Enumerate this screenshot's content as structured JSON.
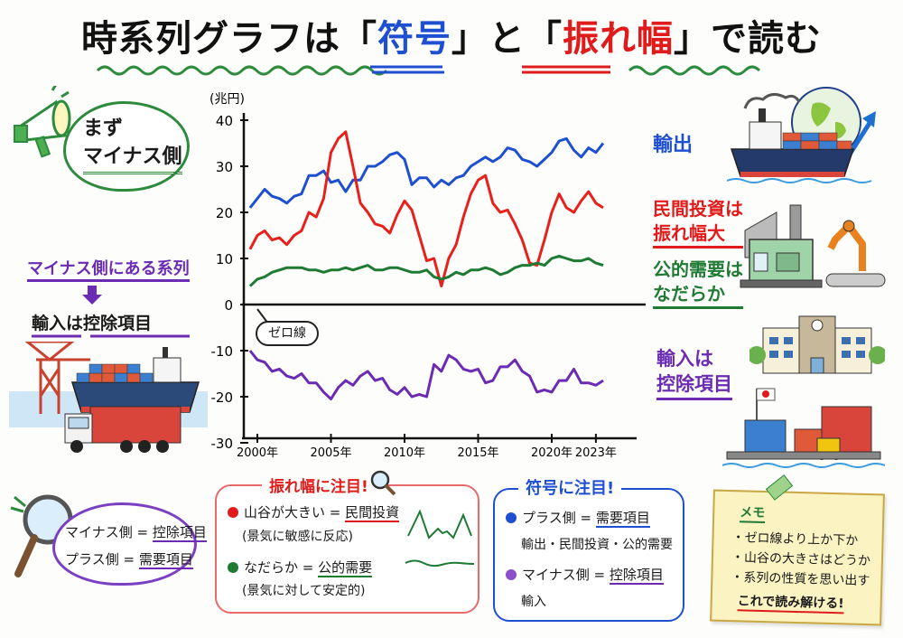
{
  "title": {
    "prefix": "時系列グラフは「",
    "word1": "符号",
    "middle": "」と「",
    "word2": "振れ幅",
    "suffix": "」で読む"
  },
  "callout_top_left": {
    "line1": "まず",
    "line2": "マイナス側",
    "icon": "megaphone-icon"
  },
  "left_note": {
    "heading": "マイナス側にある系列",
    "arrow": "down-arrow-icon",
    "line": "輸入は控除項目"
  },
  "zero_line_bubble": "ゼロ線",
  "series_labels": {
    "exports": "輸出",
    "private_investment_line1": "民間投資は",
    "private_investment_line2": "振れ幅大",
    "public_demand_line1": "公的需要は",
    "public_demand_line2": "なだらか",
    "imports_line1": "輸入は",
    "imports_line2": "控除項目"
  },
  "bottom_left_cloud": {
    "line1_left": "マイナス側 = ",
    "line1_right": "控除項目",
    "line2_left": "プラス側 = ",
    "line2_right": "需要項目"
  },
  "box_amplitude": {
    "title": "振れ幅に注目!",
    "item1_prefix": "山谷が大きい = ",
    "item1_key": "民間投資",
    "item1_note": "(景気に敏感に反応)",
    "item2_prefix": "なだらか = ",
    "item2_key": "公的需要",
    "item2_note": "(景気に対して安定的)"
  },
  "box_sign": {
    "title": "符号に注目!",
    "item1_prefix": "プラス側 = ",
    "item1_key": "需要項目",
    "item1_note": "輸出・民間投資・公的需要",
    "item2_prefix": "マイナス側 = ",
    "item2_key": "控除項目",
    "item2_note": "輸入"
  },
  "memo": {
    "title": "メモ",
    "items": [
      "・ゼロ線より上か下か",
      "・山谷の大きさはどうか",
      "・系列の性質を思い出す"
    ],
    "conclusion": "これで読み解ける!"
  },
  "colors": {
    "exports": "#1f4fd1",
    "private_investment": "#e8201c",
    "public_demand": "#1f7a34",
    "imports": "#6b2bb3"
  },
  "chart_data": {
    "type": "line",
    "title": "",
    "ylabel": "(兆円)",
    "xlabel": "",
    "ylim": [
      -30,
      40
    ],
    "yticks": [
      40,
      30,
      20,
      10,
      0,
      -10,
      -20,
      -30
    ],
    "xtick_labels": [
      "2000年",
      "2005年",
      "2010年",
      "2015年",
      "2020年",
      "2023年"
    ],
    "xticks": [
      2000,
      2005,
      2010,
      2015,
      2020,
      2023
    ],
    "grid": false,
    "zero_line": true,
    "x": [
      1999.5,
      2000,
      2000.5,
      2001,
      2001.5,
      2002,
      2002.5,
      2003,
      2003.5,
      2004,
      2004.5,
      2005,
      2005.5,
      2006,
      2006.5,
      2007,
      2007.5,
      2008,
      2008.5,
      2009,
      2009.5,
      2010,
      2010.5,
      2011,
      2011.5,
      2012,
      2012.5,
      2013,
      2013.5,
      2014,
      2014.5,
      2015,
      2015.5,
      2016,
      2016.5,
      2017,
      2017.5,
      2018,
      2018.5,
      2019,
      2019.5,
      2020,
      2020.5,
      2021,
      2021.5,
      2022,
      2022.5,
      2023,
      2023.5
    ],
    "series": [
      {
        "name": "輸出",
        "values": [
          21,
          23,
          25,
          23.5,
          23,
          22,
          23.5,
          24,
          28,
          28,
          29,
          26.5,
          27,
          24.5,
          27,
          27,
          30,
          30,
          31,
          32.5,
          33,
          31.5,
          26,
          27.5,
          27.5,
          25.5,
          27,
          26,
          27.5,
          28,
          30,
          31,
          32,
          31,
          32,
          34,
          33.5,
          31.5,
          31,
          30,
          31.5,
          33,
          35.5,
          36,
          33.5,
          32,
          34,
          33,
          35
        ]
      },
      {
        "name": "民間投資",
        "values": [
          12,
          15,
          16,
          14,
          14.5,
          13,
          15,
          16,
          20,
          19,
          23,
          33,
          36,
          37.5,
          30,
          22,
          20,
          17.5,
          17,
          15.5,
          19.5,
          22.5,
          20.5,
          15,
          9.5,
          10,
          4,
          10,
          13,
          19,
          24,
          27,
          28,
          22,
          20,
          20.5,
          17.5,
          14,
          9,
          8.5,
          14,
          20,
          24,
          21,
          20,
          22.5,
          24.5,
          22,
          21
        ]
      },
      {
        "name": "公的需要",
        "values": [
          4,
          5.5,
          6,
          7,
          7.5,
          8,
          8,
          8,
          7.5,
          7.5,
          7,
          7.5,
          7.5,
          8,
          7.5,
          8,
          8.5,
          7.5,
          7.5,
          8,
          8,
          7.5,
          7,
          7,
          7.5,
          6,
          5.5,
          6,
          7,
          6.5,
          7.5,
          7.5,
          8,
          7.5,
          6.5,
          7,
          8,
          8.5,
          8.5,
          9,
          8.5,
          10,
          10.5,
          10,
          9.5,
          9.5,
          10,
          9,
          8.5
        ]
      },
      {
        "name": "輸入",
        "values": [
          -10,
          -12,
          -12.5,
          -14.5,
          -14,
          -15.5,
          -16,
          -15,
          -17,
          -17,
          -19,
          -20.5,
          -18,
          -16.5,
          -17.5,
          -15.5,
          -14.5,
          -16.5,
          -16,
          -18.5,
          -19.5,
          -18,
          -20,
          -19.5,
          -20,
          -13,
          -14.5,
          -11,
          -12,
          -14,
          -14.5,
          -14,
          -17,
          -16.5,
          -13.5,
          -13.5,
          -12,
          -14.5,
          -15.5,
          -19,
          -18.5,
          -19,
          -16.5,
          -16.5,
          -14,
          -17,
          -17,
          -17.5,
          -16.5
        ]
      }
    ]
  }
}
